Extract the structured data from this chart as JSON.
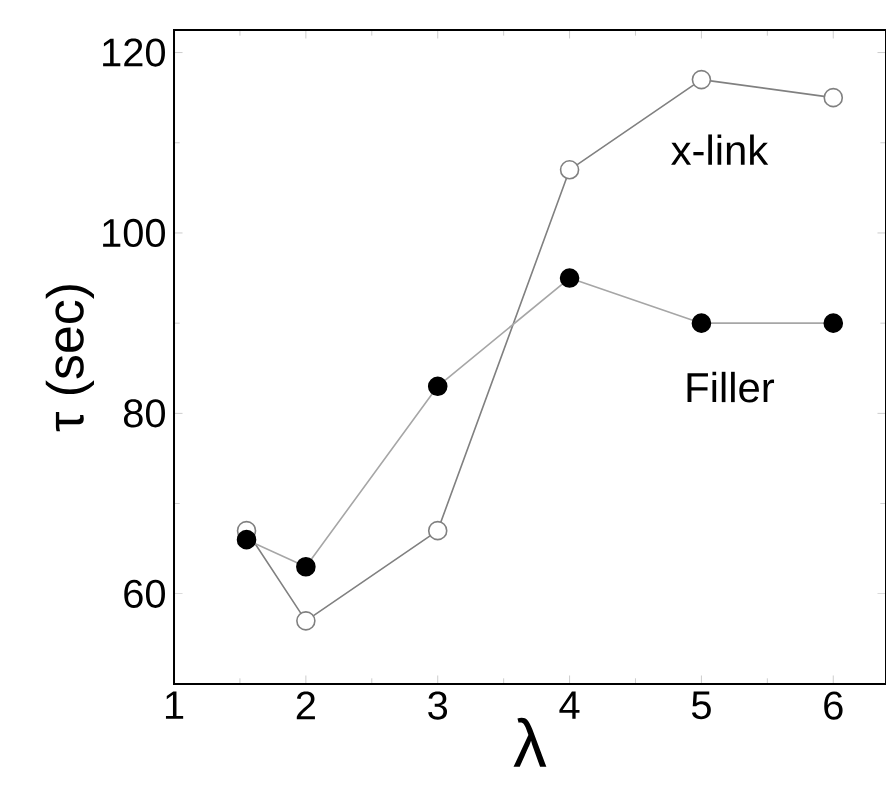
{
  "chart_data": {
    "type": "line",
    "xlabel": "λ",
    "ylabel": "τ (sec)",
    "xlim": [
      1,
      6.4
    ],
    "ylim": [
      50,
      122.5
    ],
    "xticks": [
      1,
      2,
      3,
      4,
      5,
      6
    ],
    "yticks": [
      60,
      80,
      100,
      120
    ],
    "grid": false,
    "legend": false,
    "line_style": "solid",
    "series": [
      {
        "name": "x-link",
        "color": "#808080",
        "marker": "circle",
        "x": [
          1.55,
          2,
          3,
          4,
          5,
          6
        ],
        "values": [
          67,
          57,
          67,
          107,
          117,
          115
        ]
      },
      {
        "name": "Filler",
        "color": "#000000",
        "marker": "circle",
        "x": [
          1.55,
          2,
          3,
          4,
          5,
          6
        ],
        "values": [
          66,
          63,
          83,
          95,
          90,
          90
        ]
      }
    ]
  }
}
